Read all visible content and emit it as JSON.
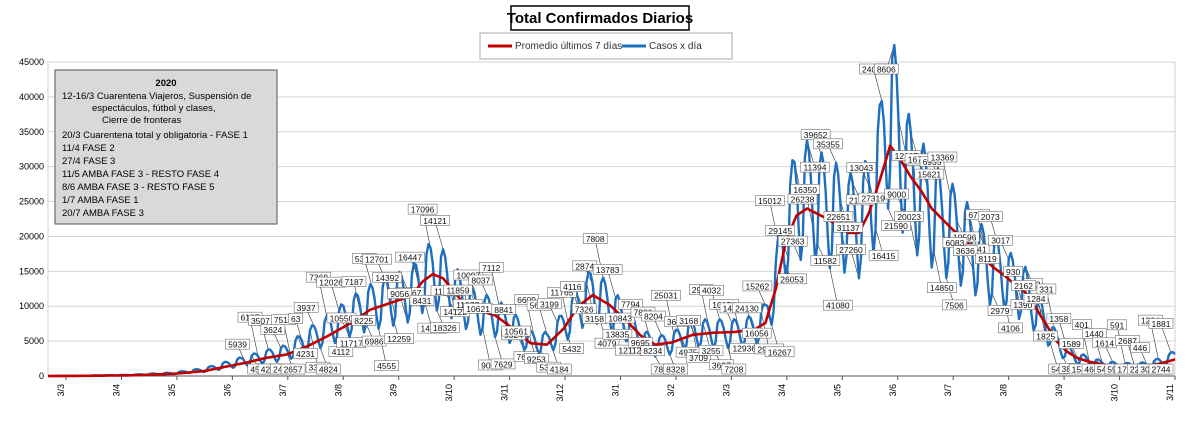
{
  "chart_data": {
    "type": "line",
    "title": "Total  Confirmados  Diarios",
    "legend": {
      "placement": "top-center",
      "entries": [
        {
          "name": "Promedio últimos 7 días",
          "color": "#c00000"
        },
        {
          "name": "Casos x día",
          "color": "#1f6fbf"
        }
      ]
    },
    "y_ticks": [
      "0",
      "5000",
      "10000",
      "15000",
      "20000",
      "25000",
      "30000",
      "35000",
      "40000",
      "45000"
    ],
    "ylim": [
      0,
      45000
    ],
    "x_ticks": [
      "3/3",
      "3/4",
      "3/5",
      "3/6",
      "3/7",
      "3/8",
      "3/9",
      "3/10",
      "3/11",
      "3/12",
      "3/1",
      "3/2",
      "3/3",
      "3/4",
      "3/5",
      "3/6",
      "3/7",
      "3/8",
      "3/9",
      "3/10",
      "3/11"
    ],
    "grid": true,
    "annotation": {
      "title": "2020",
      "lines": [
        "12-16/3  Cuarentena Viajeros, Suspensión de",
        "espectáculos, fútbol y clases,",
        "Cierre de fronteras",
        "20/3 Cuarentena total y obligatoria - FASE 1",
        "11/4 FASE 2",
        "27/4 FASE 3",
        "11/5 AMBA FASE 3 - RESTO FASE 4",
        "8/6 AMBA FASE 3 - RESTO FASE 5",
        "1/7 AMBA FASE 1",
        "20/7 AMBA FASE 3"
      ]
    },
    "data_labels": [
      "5939",
      "4518",
      "6127",
      "4249",
      "3507",
      "2438",
      "3624",
      "2657",
      "7513",
      "4231",
      "63",
      "3305",
      "3937",
      "4824",
      "7369",
      "4112",
      "12026",
      "11717",
      "10550",
      "8225",
      "7187",
      "6986",
      "5352",
      "4555",
      "12701",
      "12259",
      "14392",
      "13467",
      "9056",
      "8431",
      "16447",
      "14687",
      "17096",
      "18326",
      "14121",
      "14122",
      "11786",
      "11977",
      "11859",
      "10621",
      "10097",
      "9043",
      "8037",
      "7629",
      "7112",
      "9524",
      "8841",
      "7686",
      "10561",
      "9253",
      "6609",
      "5331",
      "5645",
      "4184",
      "3199",
      "5432",
      "11765",
      "7326",
      "4116",
      "3158",
      "2874",
      "4079",
      "7808",
      "13835",
      "13783",
      "12112",
      "10843",
      "9695",
      "7794",
      "8234",
      "7886",
      "7891",
      "8204",
      "8328",
      "25031",
      "4975",
      "3658",
      "3709",
      "3168",
      "3255",
      "2942",
      "3697",
      "4032",
      "7208",
      "10154",
      "12936",
      "14034",
      "16056",
      "24130",
      "29472",
      "15262",
      "16267",
      "15012",
      "26053",
      "29145",
      "26238",
      "27363",
      "11394",
      "16350",
      "11582",
      "39652",
      "41080",
      "35355",
      "31137",
      "22651",
      "21346",
      "27260",
      "27319",
      "13043",
      "16415",
      "24065",
      "21590",
      "8606",
      "12105",
      "9000",
      "8850",
      "20023",
      "15621",
      "16757",
      "14850",
      "6935",
      "7506",
      "13369",
      "10596",
      "6083",
      "6141",
      "3636",
      "8119",
      "6731",
      "2979",
      "2073",
      "4106",
      "3017",
      "1390",
      "930",
      "622",
      "2162",
      "1825",
      "1284",
      "549",
      "331",
      "386",
      "1358",
      "1540",
      "1589",
      "466",
      "401",
      "548",
      "1440",
      "593",
      "1614",
      "1755",
      "591",
      "2260",
      "2687",
      "3089",
      "446",
      "888",
      "1294",
      "2744",
      "1881"
    ],
    "series": [
      {
        "name": "Casos x día",
        "anchors": [
          [
            0,
            0
          ],
          [
            20,
            50
          ],
          [
            40,
            150
          ],
          [
            60,
            400
          ],
          [
            75,
            900
          ],
          [
            85,
            1600
          ],
          [
            95,
            2300
          ],
          [
            105,
            3000
          ],
          [
            115,
            3600
          ],
          [
            125,
            5500
          ],
          [
            135,
            7000
          ],
          [
            145,
            9000
          ],
          [
            155,
            10500
          ],
          [
            165,
            11500
          ],
          [
            175,
            12500
          ],
          [
            180,
            14500
          ],
          [
            185,
            15500
          ],
          [
            190,
            14500
          ],
          [
            195,
            13000
          ],
          [
            200,
            11000
          ],
          [
            208,
            9500
          ],
          [
            215,
            9000
          ],
          [
            225,
            7000
          ],
          [
            232,
            5200
          ],
          [
            240,
            5000
          ],
          [
            248,
            7500
          ],
          [
            255,
            10500
          ],
          [
            262,
            12500
          ],
          [
            270,
            10500
          ],
          [
            278,
            8000
          ],
          [
            285,
            5500
          ],
          [
            292,
            4500
          ],
          [
            300,
            5000
          ],
          [
            310,
            6500
          ],
          [
            320,
            6500
          ],
          [
            330,
            6500
          ],
          [
            340,
            7000
          ],
          [
            345,
            8500
          ],
          [
            350,
            14000
          ],
          [
            355,
            22000
          ],
          [
            360,
            26500
          ],
          [
            365,
            27000
          ],
          [
            375,
            25000
          ],
          [
            385,
            23500
          ],
          [
            390,
            22500
          ],
          [
            395,
            26000
          ],
          [
            400,
            31000
          ],
          [
            405,
            40500
          ],
          [
            410,
            34000
          ],
          [
            415,
            29000
          ],
          [
            420,
            27000
          ],
          [
            425,
            25000
          ],
          [
            430,
            23000
          ],
          [
            435,
            22000
          ],
          [
            440,
            20500
          ],
          [
            445,
            19000
          ],
          [
            450,
            17000
          ],
          [
            455,
            16000
          ],
          [
            460,
            15000
          ],
          [
            465,
            13500
          ],
          [
            470,
            12500
          ],
          [
            475,
            10000
          ],
          [
            480,
            7500
          ],
          [
            485,
            5000
          ],
          [
            490,
            3500
          ],
          [
            495,
            2700
          ],
          [
            500,
            2300
          ],
          [
            505,
            1900
          ],
          [
            510,
            1700
          ],
          [
            515,
            1500
          ],
          [
            520,
            1500
          ],
          [
            525,
            1500
          ],
          [
            530,
            1700
          ],
          [
            535,
            2100
          ],
          [
            540,
            2700
          ],
          [
            542,
            3000
          ]
        ]
      },
      {
        "name": "Promedio últimos 7 días",
        "anchors": [
          [
            0,
            0
          ],
          [
            20,
            30
          ],
          [
            40,
            100
          ],
          [
            60,
            300
          ],
          [
            75,
            700
          ],
          [
            85,
            1300
          ],
          [
            95,
            1900
          ],
          [
            105,
            2600
          ],
          [
            115,
            3100
          ],
          [
            125,
            4300
          ],
          [
            135,
            5800
          ],
          [
            145,
            7500
          ],
          [
            155,
            9500
          ],
          [
            165,
            10500
          ],
          [
            175,
            11500
          ],
          [
            180,
            13500
          ],
          [
            185,
            14600
          ],
          [
            190,
            14000
          ],
          [
            195,
            12200
          ],
          [
            200,
            10400
          ],
          [
            208,
            9300
          ],
          [
            215,
            8700
          ],
          [
            225,
            6500
          ],
          [
            232,
            4700
          ],
          [
            240,
            4500
          ],
          [
            248,
            6800
          ],
          [
            255,
            10000
          ],
          [
            262,
            11600
          ],
          [
            270,
            10200
          ],
          [
            278,
            8000
          ],
          [
            285,
            5800
          ],
          [
            292,
            4500
          ],
          [
            300,
            4800
          ],
          [
            310,
            5900
          ],
          [
            320,
            6200
          ],
          [
            330,
            6300
          ],
          [
            340,
            6700
          ],
          [
            345,
            7600
          ],
          [
            350,
            12500
          ],
          [
            355,
            19500
          ],
          [
            360,
            23000
          ],
          [
            365,
            24000
          ],
          [
            375,
            22500
          ],
          [
            385,
            20500
          ],
          [
            390,
            20500
          ],
          [
            395,
            23500
          ],
          [
            400,
            28000
          ],
          [
            405,
            33000
          ],
          [
            410,
            31000
          ],
          [
            415,
            28500
          ],
          [
            420,
            26500
          ],
          [
            425,
            24000
          ],
          [
            430,
            22500
          ],
          [
            435,
            21000
          ],
          [
            440,
            19800
          ],
          [
            445,
            18400
          ],
          [
            450,
            16800
          ],
          [
            455,
            15500
          ],
          [
            460,
            14400
          ],
          [
            465,
            13100
          ],
          [
            470,
            12000
          ],
          [
            475,
            9800
          ],
          [
            480,
            7400
          ],
          [
            485,
            5000
          ],
          [
            490,
            3500
          ],
          [
            495,
            2600
          ],
          [
            500,
            2100
          ],
          [
            505,
            1800
          ],
          [
            510,
            1500
          ],
          [
            515,
            1300
          ],
          [
            520,
            1300
          ],
          [
            525,
            1400
          ],
          [
            530,
            1500
          ],
          [
            535,
            1800
          ],
          [
            540,
            2200
          ],
          [
            542,
            2400
          ]
        ]
      }
    ]
  }
}
